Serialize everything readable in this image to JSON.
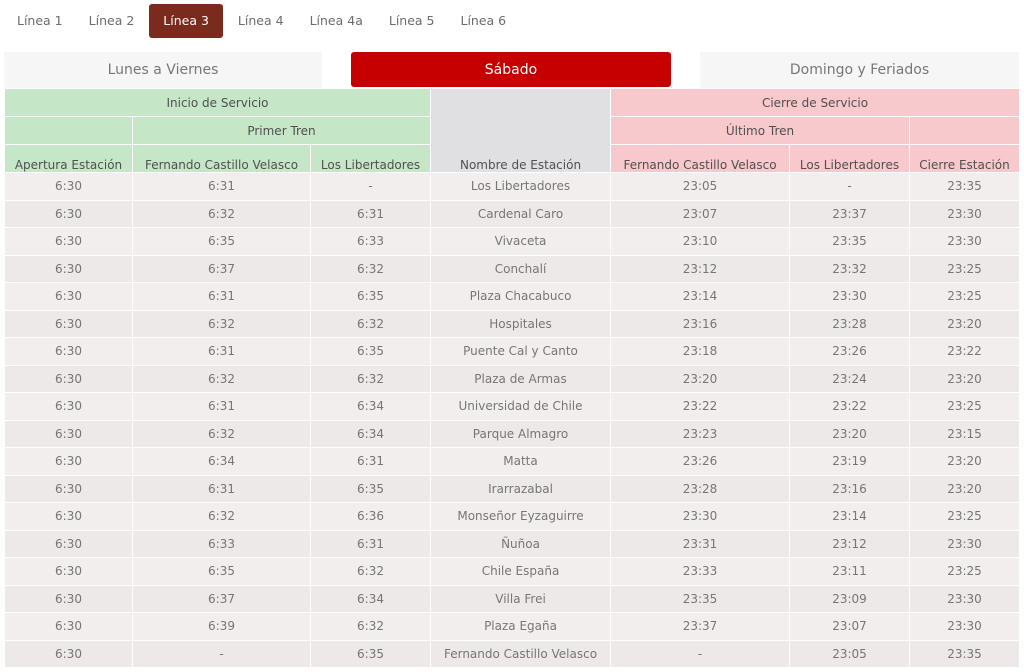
{
  "line_tabs": [
    "Línea 1",
    "Línea 2",
    "Línea 3",
    "Línea 4",
    "Línea 4a",
    "Línea 5",
    "Línea 6"
  ],
  "active_line_tab": "Línea 3",
  "day_tabs": [
    "Lunes a Viernes",
    "Sábado",
    "Domingo y Feriados"
  ],
  "active_day_tab": "Sábado",
  "colors": {
    "active_line_tab": "#7a2b1e",
    "active_day_tab": "#c60000",
    "start_service": "#c6e6c8",
    "end_service": "#f7c8cc"
  },
  "table": {
    "inicio_servicio": "Inicio de Servicio",
    "cierre_servicio": "Cierre de Servicio",
    "primer_tren": "Primer Tren",
    "ultimo_tren": "Último Tren",
    "columns": [
      "Apertura Estación",
      "Fernando Castillo Velasco",
      "Los Libertadores",
      "Nombre de Estación",
      "Fernando Castillo Velasco",
      "Los Libertadores",
      "Cierre Estación"
    ],
    "rows": [
      [
        "6:30",
        "6:31",
        "-",
        "Los Libertadores",
        "23:05",
        "-",
        "23:35"
      ],
      [
        "6:30",
        "6:32",
        "6:31",
        "Cardenal Caro",
        "23:07",
        "23:37",
        "23:30"
      ],
      [
        "6:30",
        "6:35",
        "6:33",
        "Vivaceta",
        "23:10",
        "23:35",
        "23:30"
      ],
      [
        "6:30",
        "6:37",
        "6:32",
        "Conchalí",
        "23:12",
        "23:32",
        "23:25"
      ],
      [
        "6:30",
        "6:31",
        "6:35",
        "Plaza Chacabuco",
        "23:14",
        "23:30",
        "23:25"
      ],
      [
        "6:30",
        "6:32",
        "6:32",
        "Hospitales",
        "23:16",
        "23:28",
        "23:20"
      ],
      [
        "6:30",
        "6:31",
        "6:35",
        "Puente Cal y Canto",
        "23:18",
        "23:26",
        "23:22"
      ],
      [
        "6:30",
        "6:32",
        "6:32",
        "Plaza de Armas",
        "23:20",
        "23:24",
        "23:20"
      ],
      [
        "6:30",
        "6:31",
        "6:34",
        "Universidad de Chile",
        "23:22",
        "23:22",
        "23:25"
      ],
      [
        "6:30",
        "6:32",
        "6:34",
        "Parque Almagro",
        "23:23",
        "23:20",
        "23:15"
      ],
      [
        "6:30",
        "6:34",
        "6:31",
        "Matta",
        "23:26",
        "23:19",
        "23:20"
      ],
      [
        "6:30",
        "6:31",
        "6:35",
        "Irarrazabal",
        "23:28",
        "23:16",
        "23:20"
      ],
      [
        "6:30",
        "6:32",
        "6:36",
        "Monseñor Eyzaguirre",
        "23:30",
        "23:14",
        "23:25"
      ],
      [
        "6:30",
        "6:33",
        "6:31",
        "Ñuñoa",
        "23:31",
        "23:12",
        "23:30"
      ],
      [
        "6:30",
        "6:35",
        "6:32",
        "Chile España",
        "23:33",
        "23:11",
        "23:25"
      ],
      [
        "6:30",
        "6:37",
        "6:34",
        "Villa Frei",
        "23:35",
        "23:09",
        "23:30"
      ],
      [
        "6:30",
        "6:39",
        "6:32",
        "Plaza Egaña",
        "23:37",
        "23:07",
        "23:30"
      ],
      [
        "6:30",
        "-",
        "6:35",
        "Fernando Castillo Velasco",
        "-",
        "23:05",
        "23:35"
      ]
    ]
  }
}
